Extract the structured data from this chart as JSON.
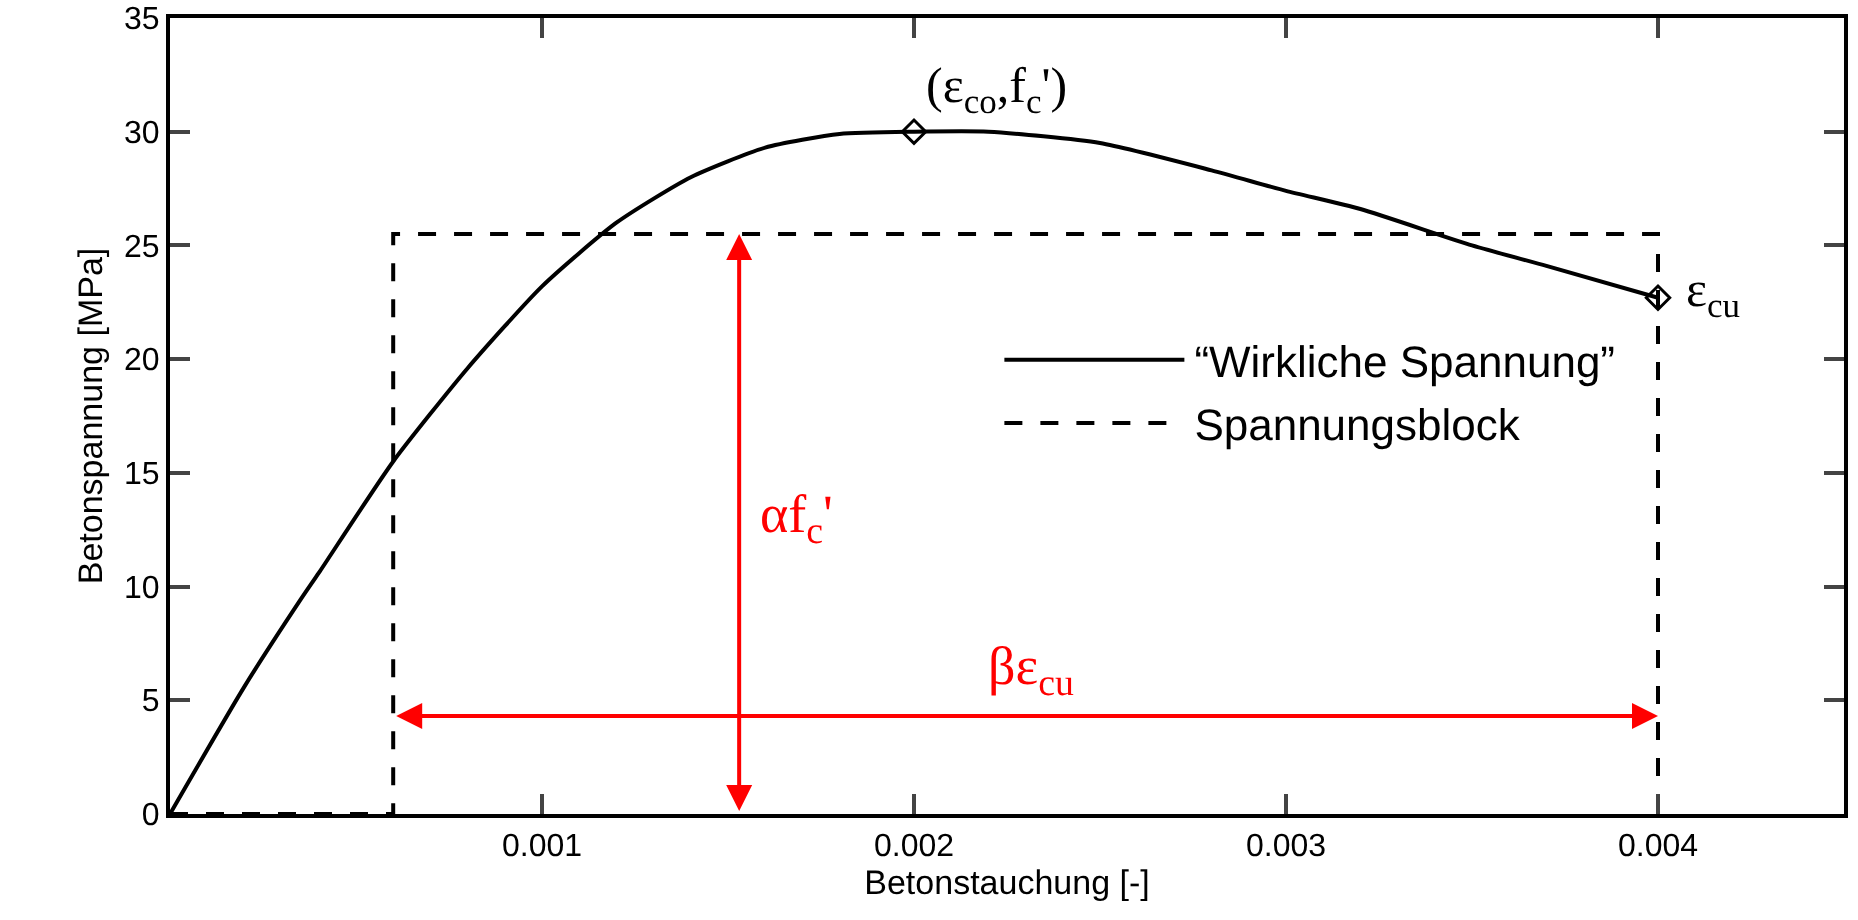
{
  "chart_data": {
    "type": "line",
    "xlabel": "Betonstauchung [-]",
    "ylabel": "Betonspannung [MPa]",
    "xlim": [
      0,
      0.0045
    ],
    "xticks": [
      0.001,
      0.002,
      0.003,
      0.004
    ],
    "ylim": [
      0,
      35
    ],
    "yticks": [
      0,
      5,
      10,
      15,
      20,
      25,
      30,
      35
    ],
    "grid": false,
    "legend": "right",
    "series": [
      {
        "name": "“Wirkliche Spannung”",
        "type": "line",
        "color": "#000000",
        "line_style": "solid",
        "marker": "none",
        "x": [
          0,
          0.0002,
          0.00035,
          0.0004,
          0.0006,
          0.0008,
          0.001,
          0.0012,
          0.0014,
          0.0016,
          0.0018,
          0.002,
          0.0022,
          0.0025,
          0.0028,
          0.003,
          0.0032,
          0.0035,
          0.0037,
          0.004
        ],
        "values": [
          0,
          5.6,
          9.4,
          10.6,
          15.5,
          19.6,
          23.2,
          26,
          28,
          29.3,
          29.9,
          30,
          30,
          29.5,
          28.3,
          27.4,
          26.6,
          25,
          24.1,
          22.7
        ]
      },
      {
        "name": "Spannungsblock",
        "type": "line",
        "color": "#000000",
        "line_style": "dashed",
        "marker": "none",
        "x": [
          0,
          0.0006,
          0.0006,
          0.004,
          0.004
        ],
        "values": [
          0,
          0,
          25.5,
          25.5,
          0
        ]
      },
      {
        "type": "scatter",
        "color": "#000000",
        "marker": "diamond",
        "x": [
          0.002,
          0.004
        ],
        "values": [
          30,
          22.7
        ]
      }
    ],
    "annotations": [
      {
        "text": "(ε$_{co}$,f$_{c}$')",
        "x": 0.002,
        "y": 30
      },
      {
        "text": "ε$_{cu}$",
        "x": 0.004,
        "y": 22.7
      },
      "αf$_{c}$'",
      "βε$_{cu}$"
    ]
  }
}
